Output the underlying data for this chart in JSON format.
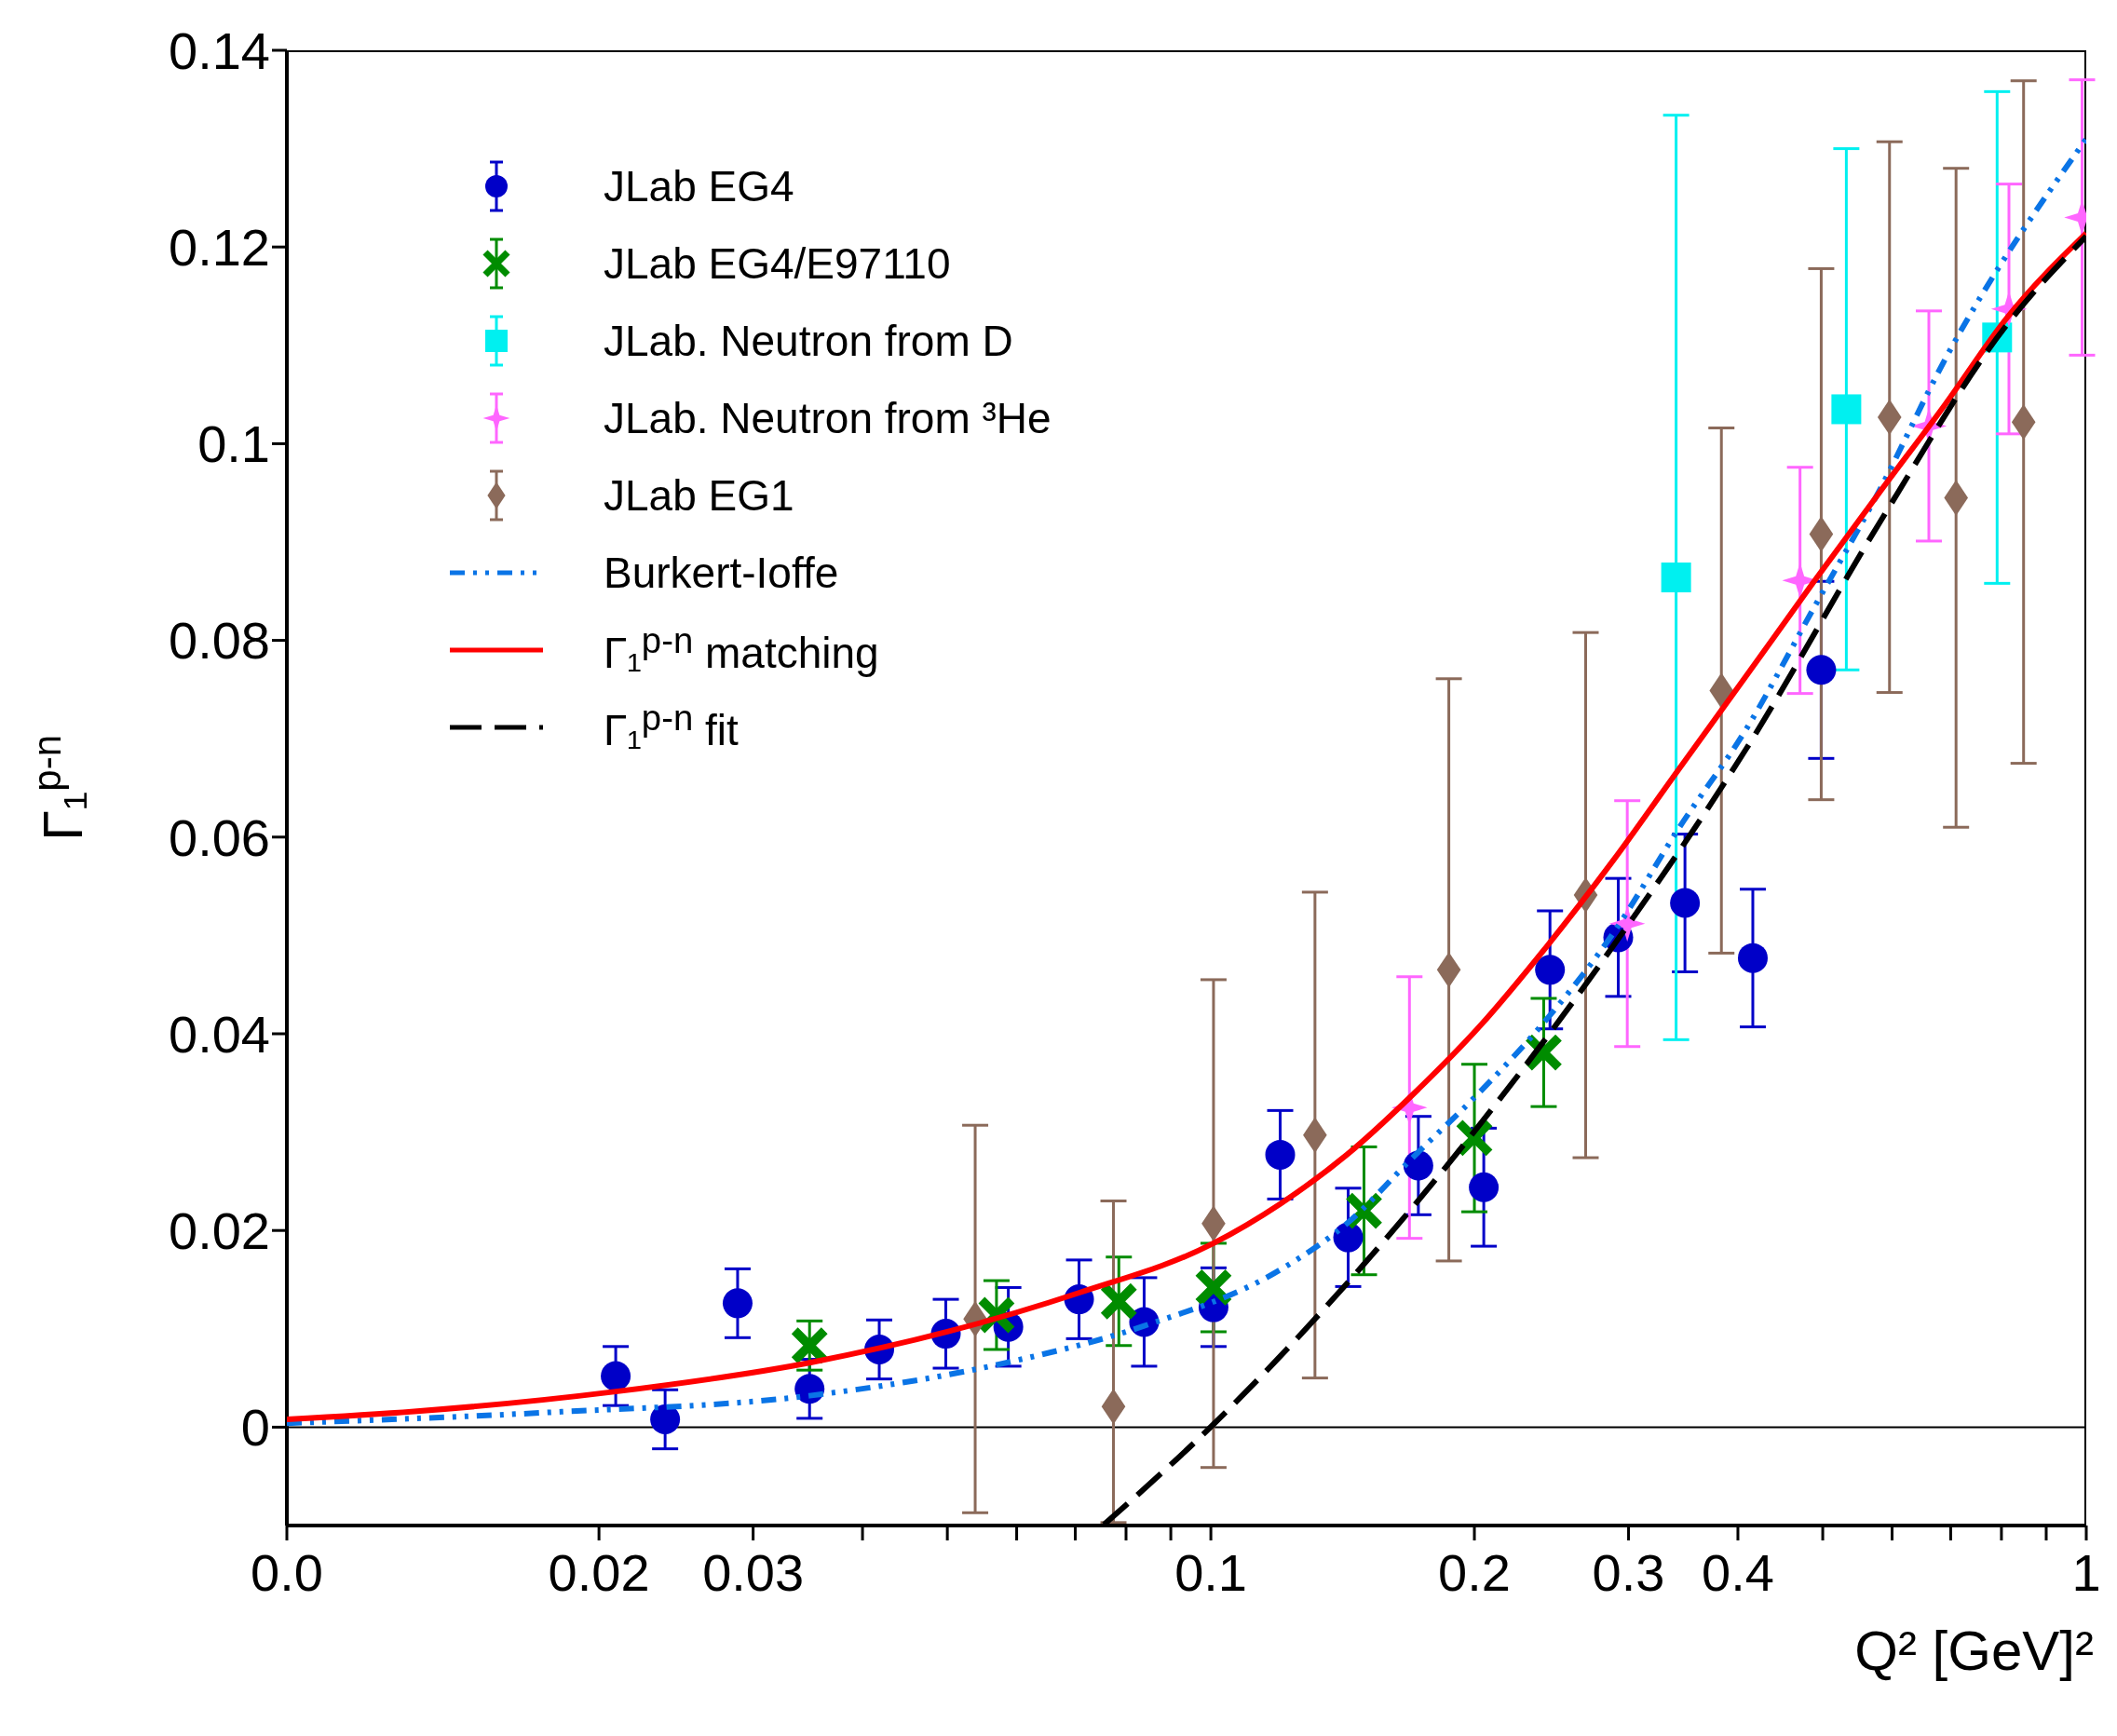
{
  "chart_data": {
    "type": "scatter",
    "xlabel": "Q² [GeV]²",
    "ylabel": "Γ₁$^{p-n}$",
    "log": "x",
    "grid": false,
    "legend": "top left",
    "xlim": [
      0.0088,
      1
    ],
    "ylim": [
      -0.01,
      0.14
    ],
    "xticks": [
      {
        "value": 0.0088,
        "label": "0.0"
      },
      0.02,
      0.03,
      {
        "value": 0.04,
        "label": null
      },
      {
        "value": 0.05,
        "label": null
      },
      {
        "value": 0.06,
        "label": null
      },
      {
        "value": 0.07,
        "label": null
      },
      {
        "value": 0.08,
        "label": null
      },
      {
        "value": 0.09,
        "label": null
      },
      0.1,
      0.2,
      0.3,
      0.4,
      {
        "value": 0.5,
        "label": null
      },
      {
        "value": 0.6,
        "label": null
      },
      {
        "value": 0.7,
        "label": null
      },
      {
        "value": 0.8,
        "label": null
      },
      {
        "value": 0.9,
        "label": null
      },
      1
    ],
    "yticks": [
      0,
      0.02,
      0.04,
      0.06,
      0.08,
      0.1,
      0.12,
      0.14
    ],
    "ref_lines": [
      {
        "axis": "y",
        "value": 0,
        "color": "#000000"
      }
    ],
    "series": [
      {
        "name": "JLab EG4",
        "marker": "circle",
        "color": "#0000c8",
        "x": [
          0.0209,
          0.0238,
          0.0288,
          0.0348,
          0.0418,
          0.0498,
          0.0587,
          0.0707,
          0.0839,
          0.1007,
          0.12,
          0.1435,
          0.1726,
          0.205,
          0.244,
          0.292,
          0.348,
          0.416,
          0.498
        ],
        "values": [
          0.0052,
          0.0008,
          0.0126,
          0.0039,
          0.0079,
          0.0095,
          0.0102,
          0.013,
          0.0107,
          0.0122,
          0.0277,
          0.0193,
          0.0266,
          0.0244,
          0.0465,
          0.0498,
          0.0533,
          0.0477,
          0.077
        ],
        "errors": [
          0.003,
          0.003,
          0.0035,
          0.003,
          0.003,
          0.0035,
          0.004,
          0.004,
          0.0045,
          0.004,
          0.0045,
          0.005,
          0.005,
          0.006,
          0.006,
          0.006,
          0.007,
          0.007,
          0.009
        ]
      },
      {
        "name": "JLab EG4/E97110",
        "marker": "cross",
        "color": "#008c00",
        "x": [
          0.0348,
          0.0569,
          0.0785,
          0.1007,
          0.1496,
          0.2,
          0.24
        ],
        "values": [
          0.0083,
          0.0114,
          0.0128,
          0.0142,
          0.022,
          0.0294,
          0.0381
        ],
        "errors": [
          0.0025,
          0.0035,
          0.0045,
          0.0045,
          0.0065,
          0.0075,
          0.0055
        ]
      },
      {
        "name": "JLab. Neutron from D",
        "marker": "square",
        "color": "#00f0f0",
        "x": [
          0.34,
          0.532,
          0.791
        ],
        "values": [
          0.0864,
          0.1035,
          0.1108
        ],
        "errors": [
          0.047,
          0.0265,
          0.025
        ]
      },
      {
        "name": "JLab. Neutron from ³He",
        "marker": "star",
        "color": "#ff66ff",
        "x": [
          0.1686,
          0.299,
          0.471,
          0.661,
          0.816,
          0.989
        ],
        "values": [
          0.0325,
          0.0512,
          0.0861,
          0.1018,
          0.1137,
          0.123
        ],
        "errors": [
          0.0133,
          0.0125,
          0.0115,
          0.0117,
          0.0127,
          0.014
        ]
      },
      {
        "name": "JLab EG1",
        "marker": "diamond",
        "color": "#8b6a5a",
        "x": [
          0.0538,
          0.0774,
          0.1007,
          0.1315,
          0.187,
          0.268,
          0.383,
          0.498,
          0.596,
          0.71,
          0.848
        ],
        "values": [
          0.011,
          0.0021,
          0.0207,
          0.0297,
          0.0465,
          0.0541,
          0.0749,
          0.0908,
          0.1027,
          0.0945,
          0.1022
        ],
        "errors": [
          0.0197,
          [
            -0.0097,
            0.023
          ],
          0.0248,
          0.0247,
          0.0296,
          0.0267,
          0.0267,
          0.027,
          0.028,
          0.0335,
          0.0347
        ]
      },
      {
        "name": "Burkert-Ioffe",
        "type": "line",
        "marker": "none",
        "line_style": "dotted",
        "color": "#0a74e6",
        "x": [
          0.0088,
          0.0175,
          0.0348,
          0.0587,
          0.0839,
          0.12,
          0.143,
          0.17,
          0.203,
          0.242,
          0.288,
          0.343,
          0.409,
          0.487,
          0.58,
          0.69,
          1
        ],
        "values": [
          0.0004,
          0.0015,
          0.0032,
          0.0066,
          0.0103,
          0.016,
          0.0207,
          0.0274,
          0.0341,
          0.0415,
          0.0502,
          0.061,
          0.071,
          0.0831,
          0.0952,
          0.1086,
          0.131
        ]
      },
      {
        "name": "Γ₁$^{p-n}$ matching",
        "type": "line",
        "marker": "none",
        "line_style": "solid",
        "color": "#ff0000",
        "x": [
          0.0088,
          0.0123,
          0.0208,
          0.035,
          0.05,
          0.0709,
          0.1007,
          0.12,
          0.143,
          0.17,
          0.203,
          0.242,
          0.288,
          0.343,
          0.409,
          0.487,
          0.58,
          0.69,
          0.81,
          1
        ],
        "values": [
          0.0008,
          0.0016,
          0.0036,
          0.0066,
          0.0097,
          0.0137,
          0.0187,
          0.0227,
          0.0277,
          0.0338,
          0.0408,
          0.0489,
          0.0576,
          0.067,
          0.0764,
          0.0858,
          0.095,
          0.104,
          0.1127,
          0.1214
        ]
      },
      {
        "name": "Γ₁$^{p-n}$ fit",
        "type": "line",
        "marker": "none",
        "line_style": "dashed",
        "color": "#000000",
        "x": [
          0.0755,
          0.1007,
          0.143,
          0.203,
          0.288,
          0.409,
          0.58,
          0.81,
          1
        ],
        "values": [
          -0.0099,
          0.0003,
          0.0146,
          0.0308,
          0.0489,
          0.069,
          0.0919,
          0.112,
          0.1211
        ]
      }
    ]
  }
}
